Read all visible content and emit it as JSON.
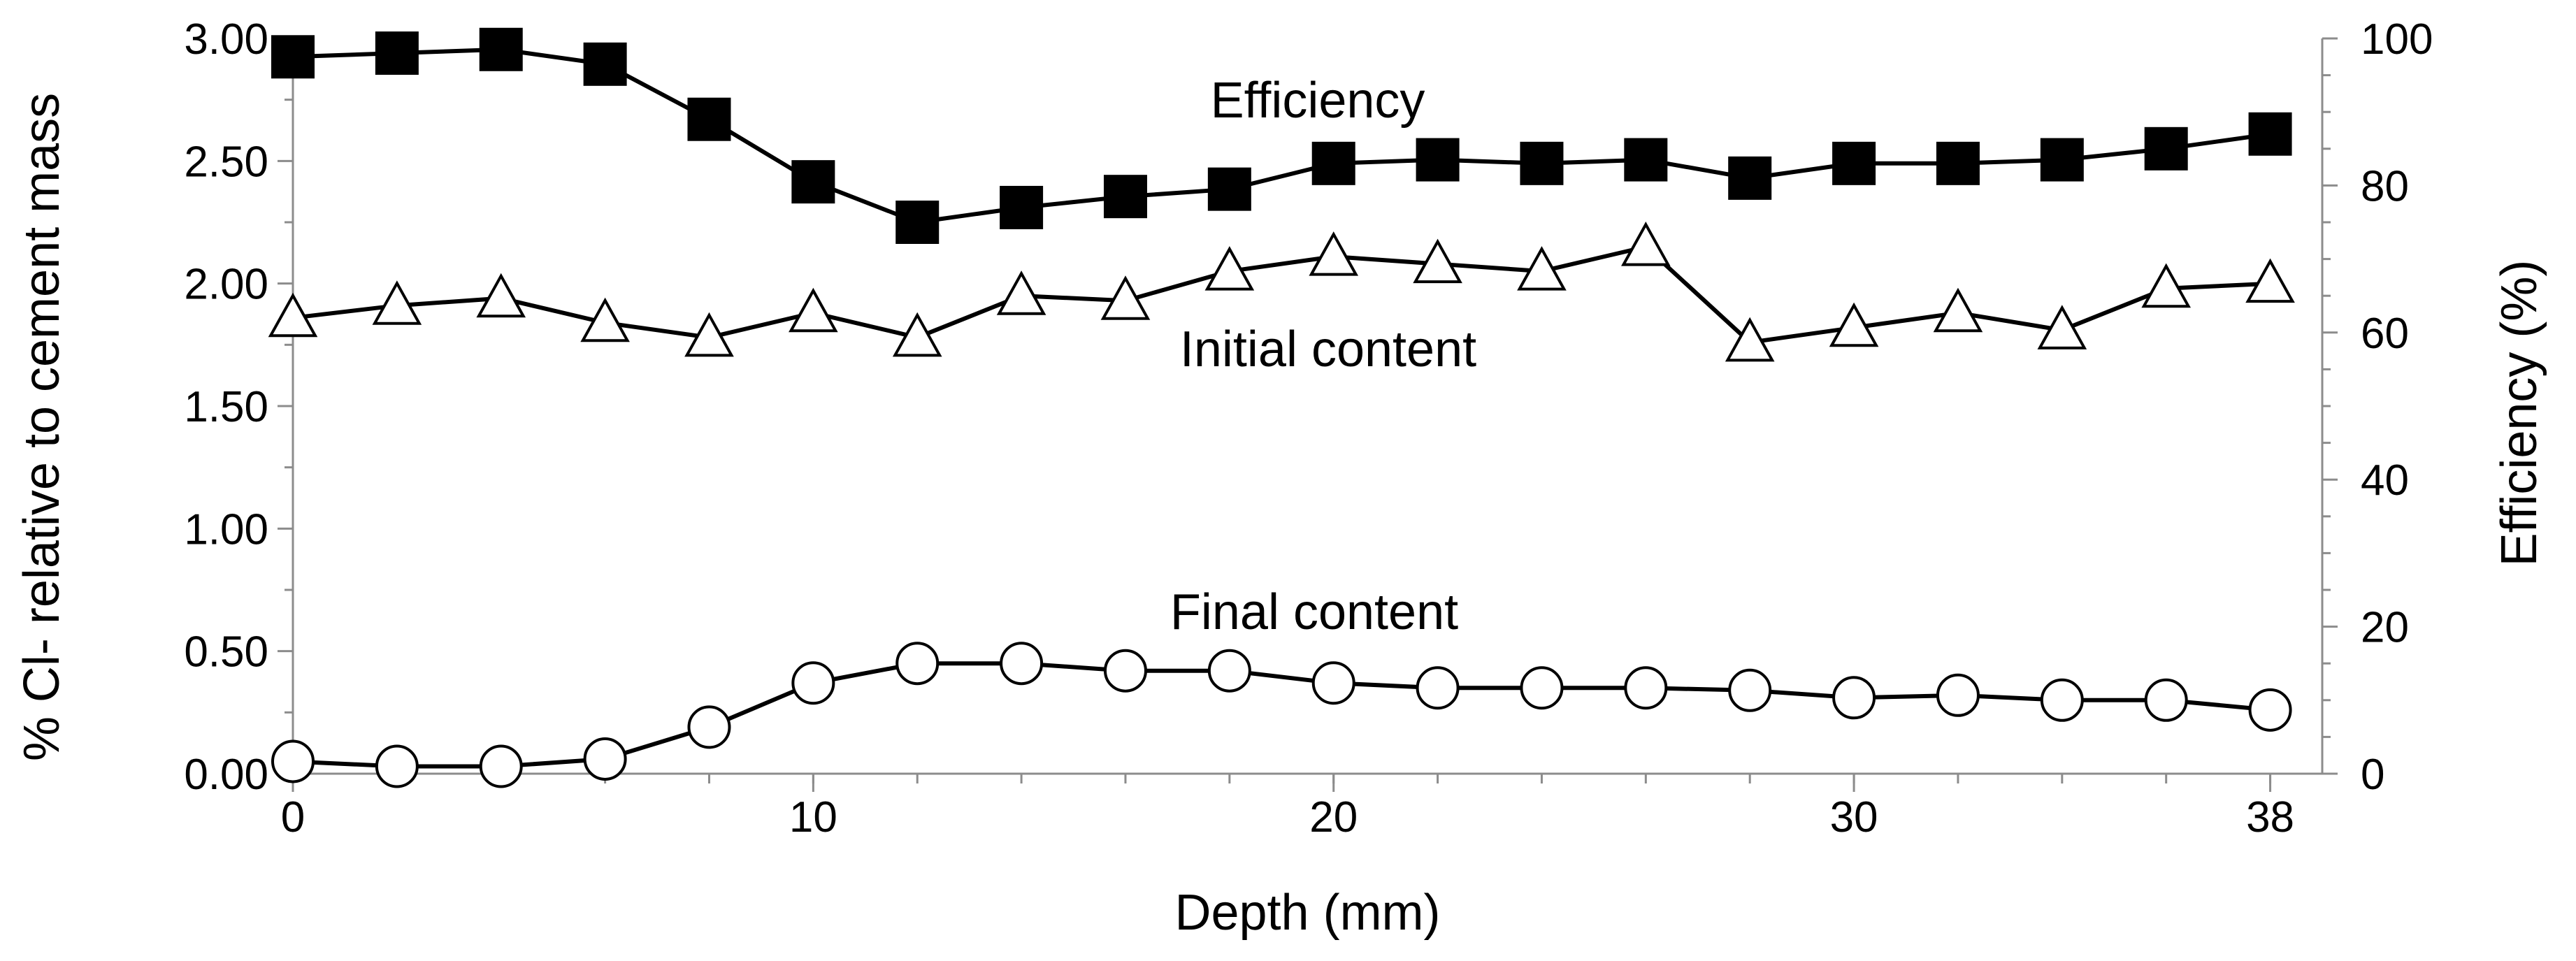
{
  "chart_data": {
    "type": "line",
    "xlabel": "Depth (mm)",
    "ylabel_left": "% Cl- relative to cement mass",
    "ylabel_right": "Efficiency (%)",
    "xlim": [
      0,
      39
    ],
    "x_ticks": [
      0,
      10,
      20,
      30,
      38
    ],
    "ylim_left": [
      0,
      3.0
    ],
    "y_ticks_left": [
      "0.00",
      "0.50",
      "1.00",
      "1.50",
      "2.00",
      "2.50",
      "3.00"
    ],
    "ylim_right": [
      0,
      100
    ],
    "y_ticks_right": [
      "0",
      "20",
      "40",
      "60",
      "80",
      "100"
    ],
    "grid": false,
    "x": [
      0,
      2,
      4,
      6,
      8,
      10,
      12,
      14,
      16,
      18,
      20,
      22,
      24,
      26,
      28,
      30,
      32,
      34,
      36,
      38
    ],
    "series": [
      {
        "name": "Efficiency",
        "axis": "right",
        "marker": "square-filled",
        "values": [
          97.5,
          98,
          98.5,
          96.5,
          89,
          80.5,
          75,
          77,
          78.5,
          79.5,
          83,
          83.5,
          83,
          83.5,
          81,
          83,
          83,
          83.5,
          85,
          87
        ]
      },
      {
        "name": "Initial content",
        "axis": "left",
        "marker": "triangle-open",
        "values": [
          1.86,
          1.91,
          1.94,
          1.84,
          1.78,
          1.88,
          1.78,
          1.95,
          1.93,
          2.05,
          2.11,
          2.08,
          2.05,
          2.15,
          1.76,
          1.82,
          1.88,
          1.81,
          1.98,
          2.0
        ]
      },
      {
        "name": "Final content",
        "axis": "left",
        "marker": "circle-open",
        "values": [
          0.05,
          0.03,
          0.03,
          0.06,
          0.19,
          0.37,
          0.45,
          0.45,
          0.42,
          0.42,
          0.37,
          0.35,
          0.35,
          0.35,
          0.34,
          0.31,
          0.32,
          0.3,
          0.3,
          0.26
        ]
      }
    ]
  }
}
